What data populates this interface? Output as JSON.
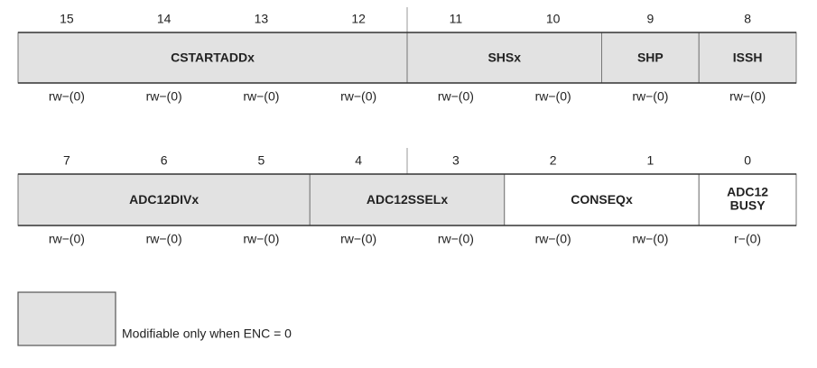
{
  "registers": [
    {
      "bits": [
        15,
        14,
        13,
        12,
        11,
        10,
        9,
        8
      ],
      "fields": [
        {
          "label": "CSTARTADDx",
          "shaded": true
        },
        {
          "label": "SHSx",
          "shaded": true
        },
        {
          "label": "SHP",
          "shaded": true
        },
        {
          "label": "ISSH",
          "shaded": true
        }
      ],
      "access": [
        "rw−(0)",
        "rw−(0)",
        "rw−(0)",
        "rw−(0)",
        "rw−(0)",
        "rw−(0)",
        "rw−(0)",
        "rw−(0)"
      ]
    },
    {
      "bits": [
        7,
        6,
        5,
        4,
        3,
        2,
        1,
        0
      ],
      "fields": [
        {
          "label": "ADC12DIVx",
          "shaded": true
        },
        {
          "label": "ADC12SSELx",
          "shaded": true
        },
        {
          "label": "CONSEQx",
          "shaded": false
        },
        {
          "label": [
            "ADC12",
            "BUSY"
          ],
          "shaded": false
        }
      ],
      "access": [
        "rw−(0)",
        "rw−(0)",
        "rw−(0)",
        "rw−(0)",
        "rw−(0)",
        "rw−(0)",
        "rw−(0)",
        "r−(0)"
      ]
    }
  ],
  "legend": {
    "text": "Modifiable only when ENC = 0"
  }
}
